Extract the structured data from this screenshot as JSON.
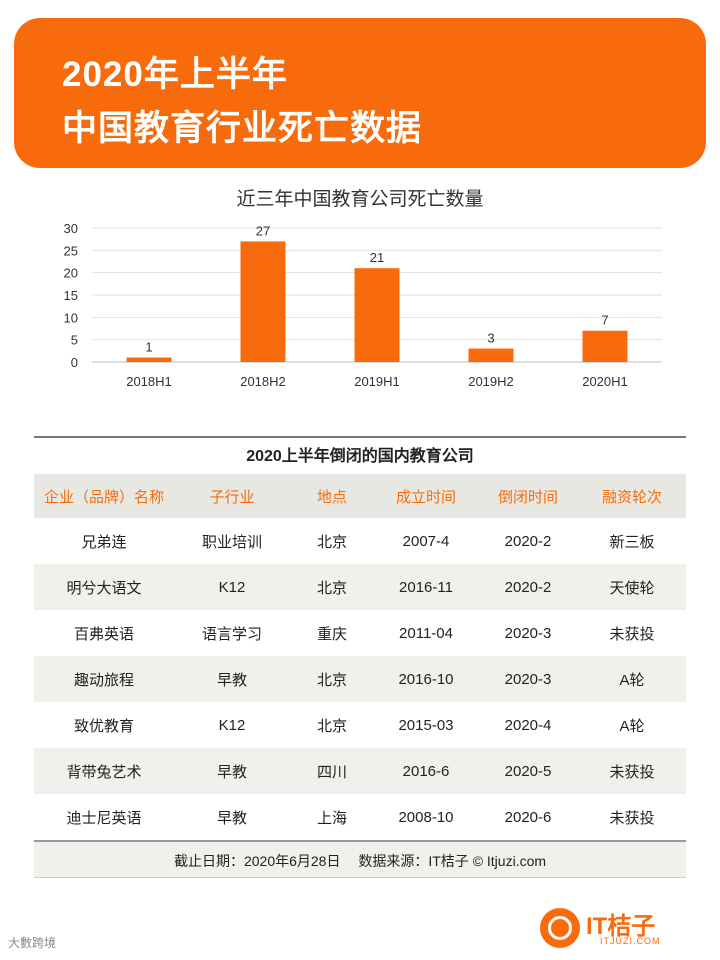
{
  "header": {
    "line1": "2020年上半年",
    "line2": "中国教育行业死亡数据"
  },
  "chart_data": {
    "type": "bar",
    "title": "近三年中国教育公司死亡数量",
    "categories": [
      "2018H1",
      "2018H2",
      "2019H1",
      "2019H2",
      "2020H1"
    ],
    "values": [
      1,
      27,
      21,
      3,
      7
    ],
    "ylim": [
      0,
      30
    ],
    "yticks": [
      0,
      5,
      10,
      15,
      20,
      25,
      30
    ],
    "grid": true,
    "color": "#f76b0d"
  },
  "table": {
    "title": "2020上半年倒闭的国内教育公司",
    "headers": [
      "企业（品牌）名称",
      "子行业",
      "地点",
      "成立时间",
      "倒闭时间",
      "融资轮次"
    ],
    "rows": [
      [
        "兄弟连",
        "职业培训",
        "北京",
        "2007-4",
        "2020-2",
        "新三板"
      ],
      [
        "明兮大语文",
        "K12",
        "北京",
        "2016-11",
        "2020-2",
        "天使轮"
      ],
      [
        "百弗英语",
        "语言学习",
        "重庆",
        "2011-04",
        "2020-3",
        "未获投"
      ],
      [
        "趣动旅程",
        "早教",
        "北京",
        "2016-10",
        "2020-3",
        "A轮"
      ],
      [
        "致优教育",
        "K12",
        "北京",
        "2015-03",
        "2020-4",
        "A轮"
      ],
      [
        "背带兔艺术",
        "早教",
        "四川",
        "2016-6",
        "2020-5",
        "未获投"
      ],
      [
        "迪士尼英语",
        "早教",
        "上海",
        "2008-10",
        "2020-6",
        "未获投"
      ]
    ],
    "footer": "截止日期：2020年6月28日　 数据来源：IT桔子 © Itjuzi.com"
  },
  "logo": {
    "name": "IT桔子",
    "domain": "ITJUZI.COM"
  },
  "watermark": "大數跨境"
}
